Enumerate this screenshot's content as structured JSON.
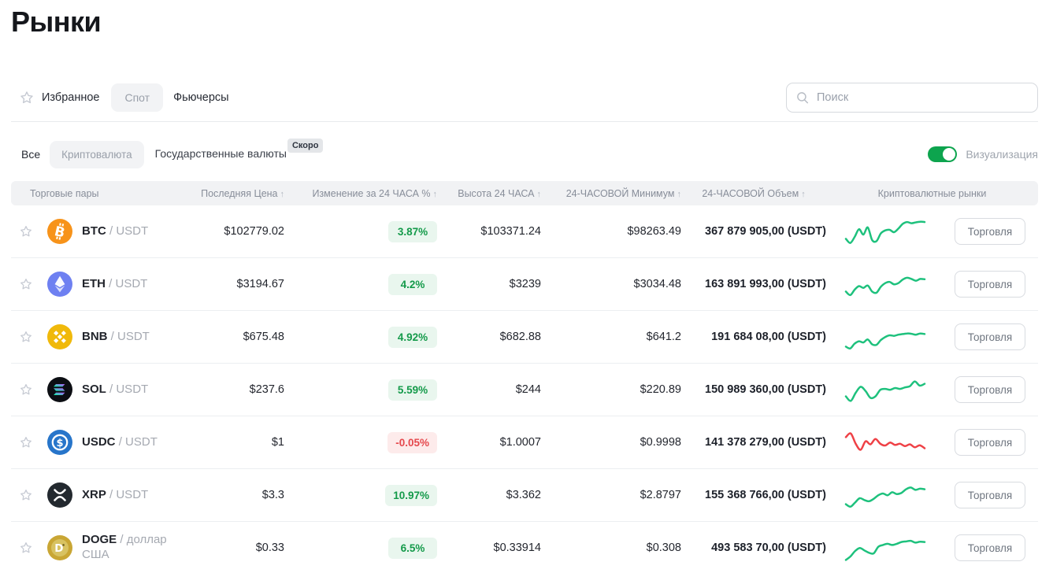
{
  "page": {
    "title": "Рынки"
  },
  "tabs": {
    "favorites": "Избранное",
    "spot": "Спот",
    "futures": "Фьючерсы"
  },
  "search": {
    "placeholder": "Поиск"
  },
  "filters": {
    "all": "Все",
    "crypto": "Криптовалюта",
    "fiat": "Государственные валюты",
    "fiat_badge": "Скоро",
    "visualization_label": "Визуализация",
    "visualization_on": true
  },
  "colors": {
    "toggle_on": "#0da44e",
    "spark_up": "#1ec17d",
    "spark_down": "#ef4146",
    "badge_up_text": "#149a4a",
    "badge_up_bg": "#e9f6ee",
    "badge_down_text": "#e5484d",
    "badge_down_bg": "#fdebeb",
    "btc": "#f7931a",
    "eth": "#6e80f1",
    "bnb": "#f0b90b",
    "sol": "#0c0e13",
    "usdc": "#2775ca",
    "xrp": "#23292f",
    "doge": "#c9a634"
  },
  "table": {
    "trade_button_label": "Торговля",
    "columns": [
      {
        "label": "Торговые пары",
        "sortable": false,
        "align": "left"
      },
      {
        "label": "Последняя Цена",
        "sortable": true,
        "align": "right"
      },
      {
        "label": "Изменение за 24 ЧАСА %",
        "sortable": true,
        "align": "right"
      },
      {
        "label": "Высота 24 ЧАСА",
        "sortable": true,
        "align": "right"
      },
      {
        "label": "24-ЧАСОВОЙ Минимум",
        "sortable": true,
        "align": "right"
      },
      {
        "label": "24-ЧАСОВОЙ Объем",
        "sortable": true,
        "align": "center"
      },
      {
        "label": "Криптовалютные рынки",
        "sortable": false,
        "align": "center",
        "span_last": true
      }
    ],
    "rows": [
      {
        "icon": "btc-icon",
        "icon_bg": "#f7931a",
        "pair_base": "BTC",
        "pair_quote": "USDT",
        "last_price": "$102779.02",
        "change": "3.87%",
        "change_positive": true,
        "high": "$103371.24",
        "low": "$98263.49",
        "volume": "367 879 905,00 (USDT)",
        "trend": "up",
        "spark": [
          28,
          14,
          34,
          60,
          42,
          66,
          24,
          20,
          46,
          56,
          58,
          50,
          62,
          78,
          84,
          80,
          83,
          85,
          84
        ]
      },
      {
        "icon": "eth-icon",
        "icon_bg": "#6e80f1",
        "pair_base": "ETH",
        "pair_quote": "USDT",
        "last_price": "$3194.67",
        "change": "4.2%",
        "change_positive": true,
        "high": "$3239",
        "low": "$3034.48",
        "volume": "163 891 993,00 (USDT)",
        "trend": "up",
        "spark": [
          28,
          16,
          34,
          46,
          40,
          48,
          28,
          24,
          44,
          56,
          60,
          52,
          56,
          68,
          74,
          70,
          64,
          70,
          69
        ]
      },
      {
        "icon": "bnb-icon",
        "icon_bg": "#f0b90b",
        "pair_base": "BNB",
        "pair_quote": "USDT",
        "last_price": "$675.48",
        "change": "4.92%",
        "change_positive": true,
        "high": "$682.88",
        "low": "$641.2",
        "volume": "191 684 08,00 (USDT)",
        "trend": "up",
        "spark": [
          20,
          14,
          30,
          38,
          34,
          44,
          28,
          26,
          42,
          52,
          58,
          56,
          60,
          62,
          64,
          63,
          60,
          64,
          62
        ]
      },
      {
        "icon": "sol-icon",
        "icon_bg": "#0c0e13",
        "pair_base": "SOL",
        "pair_quote": "USDT",
        "last_price": "$237.6",
        "change": "5.59%",
        "change_positive": true,
        "high": "$244",
        "low": "$220.89",
        "volume": "150 989 360,00 (USDT)",
        "trend": "up",
        "spark": [
          30,
          15,
          42,
          62,
          48,
          25,
          30,
          52,
          55,
          52,
          58,
          55,
          60,
          64,
          80,
          66,
          72
        ]
      },
      {
        "icon": "usdc-icon",
        "icon_bg": "#2775ca",
        "pair_base": "USDC",
        "pair_quote": "USDT",
        "last_price": "$1",
        "change": "-0.05%",
        "change_positive": false,
        "high": "$1.0007",
        "low": "$0.9998",
        "volume": "141 378 279,00 (USDT)",
        "trend": "down",
        "spark": [
          70,
          82,
          48,
          28,
          56,
          46,
          64,
          48,
          42,
          52,
          44,
          48,
          40,
          46,
          36,
          43,
          33
        ]
      },
      {
        "icon": "xrp-icon",
        "icon_bg": "#23292f",
        "pair_base": "XRP",
        "pair_quote": "USDT",
        "last_price": "$3.3",
        "change": "10.97%",
        "change_positive": true,
        "high": "$3.362",
        "low": "$2.8797",
        "volume": "155 368 766,00 (USDT)",
        "trend": "up",
        "spark": [
          22,
          14,
          28,
          42,
          36,
          32,
          40,
          52,
          58,
          52,
          62,
          56,
          60,
          72,
          78,
          70,
          74,
          72
        ]
      },
      {
        "icon": "doge-icon",
        "icon_bg": "#c9a634",
        "pair_base": "DOGE",
        "pair_quote": "доллар США",
        "last_price": "$0.33",
        "change": "6.5%",
        "change_positive": true,
        "high": "$0.33914",
        "low": "$0.308",
        "volume": "493 583 70,00 (USDT)",
        "trend": "up",
        "spark": [
          12,
          24,
          42,
          52,
          44,
          36,
          34,
          56,
          62,
          66,
          62,
          66,
          72,
          74,
          76,
          70,
          73,
          72
        ]
      }
    ]
  }
}
